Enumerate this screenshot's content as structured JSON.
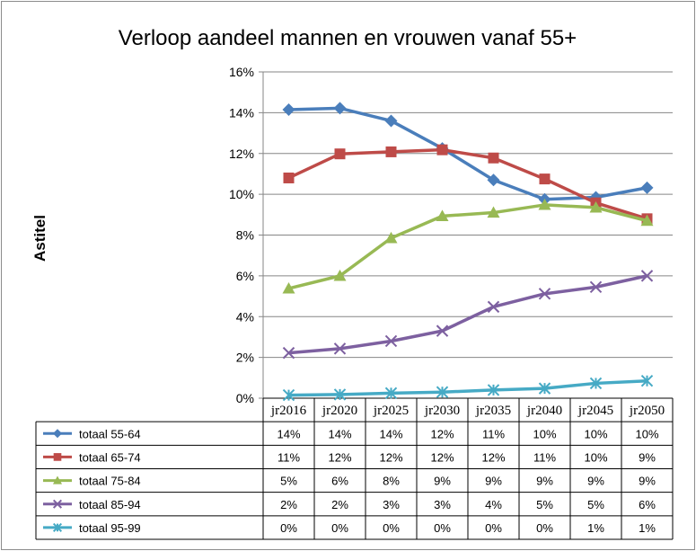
{
  "chart_data": {
    "type": "line",
    "title": "Verloop aandeel mannen en vrouwen vanaf 55+",
    "ylabel": "Astitel",
    "xlabel": "",
    "ylim": [
      0,
      0.16
    ],
    "yticks": [
      "0%",
      "2%",
      "4%",
      "6%",
      "8%",
      "10%",
      "12%",
      "14%",
      "16%"
    ],
    "grid": true,
    "legend": "data-table-below",
    "categories": [
      "jr2016",
      "jr2020",
      "jr2025",
      "jr2030",
      "jr2035",
      "jr2040",
      "jr2045",
      "jr2050"
    ],
    "series": [
      {
        "name": "totaal 55-64",
        "color": "#4a7ebb",
        "marker": "diamond",
        "values": [
          0.1415,
          0.1422,
          0.136,
          0.1225,
          0.107,
          0.0975,
          0.0985,
          0.1032
        ],
        "labels": [
          "14%",
          "14%",
          "14%",
          "12%",
          "11%",
          "10%",
          "10%",
          "10%"
        ]
      },
      {
        "name": "totaal 65-74",
        "color": "#be4b48",
        "marker": "square",
        "values": [
          0.108,
          0.1198,
          0.1208,
          0.1218,
          0.1178,
          0.1075,
          0.0958,
          0.088
        ],
        "labels": [
          "11%",
          "12%",
          "12%",
          "12%",
          "12%",
          "11%",
          "10%",
          "9%"
        ]
      },
      {
        "name": "totaal 75-84",
        "color": "#98b954",
        "marker": "triangle",
        "values": [
          0.0538,
          0.06,
          0.0785,
          0.0893,
          0.091,
          0.0948,
          0.0935,
          0.087
        ],
        "labels": [
          "5%",
          "6%",
          "8%",
          "9%",
          "9%",
          "9%",
          "9%",
          "9%"
        ]
      },
      {
        "name": "totaal 85-94",
        "color": "#7d60a0",
        "marker": "x",
        "values": [
          0.0222,
          0.0243,
          0.028,
          0.033,
          0.0448,
          0.0512,
          0.0545,
          0.06
        ],
        "labels": [
          "2%",
          "2%",
          "3%",
          "3%",
          "4%",
          "5%",
          "5%",
          "6%"
        ]
      },
      {
        "name": "totaal 95-99",
        "color": "#46aac5",
        "marker": "star",
        "values": [
          0.0015,
          0.0018,
          0.0025,
          0.003,
          0.004,
          0.0048,
          0.0073,
          0.0085
        ],
        "labels": [
          "0%",
          "0%",
          "0%",
          "0%",
          "0%",
          "0%",
          "1%",
          "1%"
        ]
      }
    ]
  }
}
